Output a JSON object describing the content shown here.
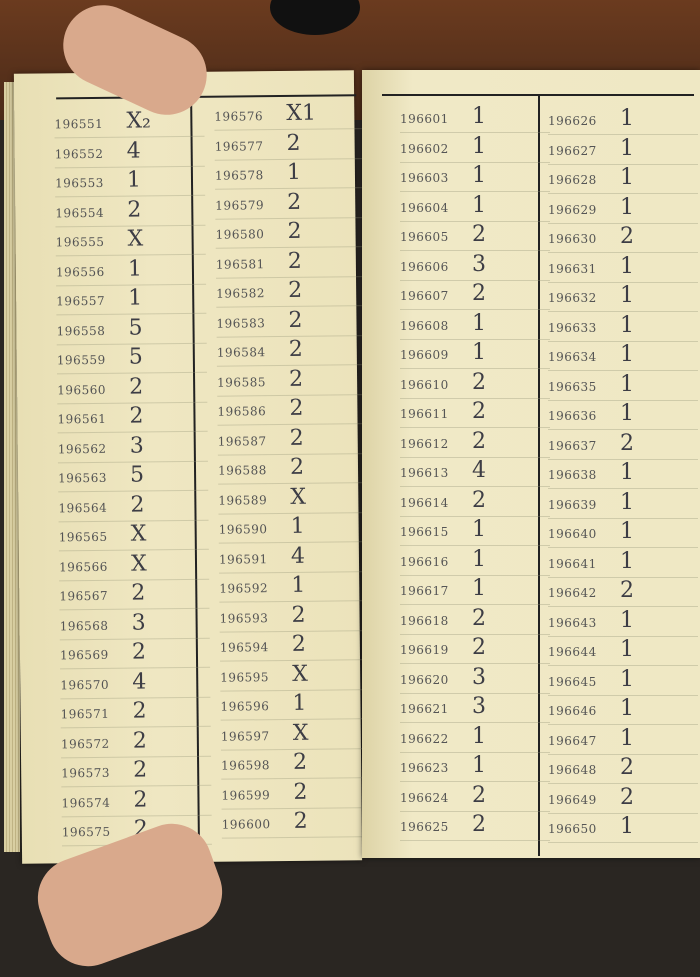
{
  "ledger": {
    "left_page": {
      "columns": [
        {
          "rows": [
            {
              "number": "196551",
              "value": "X₂"
            },
            {
              "number": "196552",
              "value": "4"
            },
            {
              "number": "196553",
              "value": "1"
            },
            {
              "number": "196554",
              "value": "2"
            },
            {
              "number": "196555",
              "value": "X"
            },
            {
              "number": "196556",
              "value": "1"
            },
            {
              "number": "196557",
              "value": "1"
            },
            {
              "number": "196558",
              "value": "5"
            },
            {
              "number": "196559",
              "value": "5"
            },
            {
              "number": "196560",
              "value": "2"
            },
            {
              "number": "196561",
              "value": "2"
            },
            {
              "number": "196562",
              "value": "3"
            },
            {
              "number": "196563",
              "value": "5"
            },
            {
              "number": "196564",
              "value": "2"
            },
            {
              "number": "196565",
              "value": "X"
            },
            {
              "number": "196566",
              "value": "X"
            },
            {
              "number": "196567",
              "value": "2"
            },
            {
              "number": "196568",
              "value": "3"
            },
            {
              "number": "196569",
              "value": "2"
            },
            {
              "number": "196570",
              "value": "4"
            },
            {
              "number": "196571",
              "value": "2"
            },
            {
              "number": "196572",
              "value": "2"
            },
            {
              "number": "196573",
              "value": "2"
            },
            {
              "number": "196574",
              "value": "2"
            },
            {
              "number": "196575",
              "value": "2"
            }
          ]
        },
        {
          "rows": [
            {
              "number": "196576",
              "value": "X1"
            },
            {
              "number": "196577",
              "value": "2"
            },
            {
              "number": "196578",
              "value": "1"
            },
            {
              "number": "196579",
              "value": "2"
            },
            {
              "number": "196580",
              "value": "2"
            },
            {
              "number": "196581",
              "value": "2"
            },
            {
              "number": "196582",
              "value": "2"
            },
            {
              "number": "196583",
              "value": "2"
            },
            {
              "number": "196584",
              "value": "2"
            },
            {
              "number": "196585",
              "value": "2"
            },
            {
              "number": "196586",
              "value": "2"
            },
            {
              "number": "196587",
              "value": "2"
            },
            {
              "number": "196588",
              "value": "2"
            },
            {
              "number": "196589",
              "value": "X"
            },
            {
              "number": "196590",
              "value": "1"
            },
            {
              "number": "196591",
              "value": "4"
            },
            {
              "number": "196592",
              "value": "1"
            },
            {
              "number": "196593",
              "value": "2"
            },
            {
              "number": "196594",
              "value": "2"
            },
            {
              "number": "196595",
              "value": "X"
            },
            {
              "number": "196596",
              "value": "1"
            },
            {
              "number": "196597",
              "value": "X"
            },
            {
              "number": "196598",
              "value": "2"
            },
            {
              "number": "196599",
              "value": "2"
            },
            {
              "number": "196600",
              "value": "2"
            }
          ]
        }
      ]
    },
    "right_page": {
      "columns": [
        {
          "rows": [
            {
              "number": "196601",
              "value": "1"
            },
            {
              "number": "196602",
              "value": "1"
            },
            {
              "number": "196603",
              "value": "1"
            },
            {
              "number": "196604",
              "value": "1"
            },
            {
              "number": "196605",
              "value": "2"
            },
            {
              "number": "196606",
              "value": "3"
            },
            {
              "number": "196607",
              "value": "2"
            },
            {
              "number": "196608",
              "value": "1"
            },
            {
              "number": "196609",
              "value": "1"
            },
            {
              "number": "196610",
              "value": "2"
            },
            {
              "number": "196611",
              "value": "2"
            },
            {
              "number": "196612",
              "value": "2"
            },
            {
              "number": "196613",
              "value": "4"
            },
            {
              "number": "196614",
              "value": "2"
            },
            {
              "number": "196615",
              "value": "1"
            },
            {
              "number": "196616",
              "value": "1"
            },
            {
              "number": "196617",
              "value": "1"
            },
            {
              "number": "196618",
              "value": "2"
            },
            {
              "number": "196619",
              "value": "2"
            },
            {
              "number": "196620",
              "value": "3"
            },
            {
              "number": "196621",
              "value": "3"
            },
            {
              "number": "196622",
              "value": "1"
            },
            {
              "number": "196623",
              "value": "1"
            },
            {
              "number": "196624",
              "value": "2"
            },
            {
              "number": "196625",
              "value": "2"
            }
          ]
        },
        {
          "rows": [
            {
              "number": "196626",
              "value": "1"
            },
            {
              "number": "196627",
              "value": "1"
            },
            {
              "number": "196628",
              "value": "1"
            },
            {
              "number": "196629",
              "value": "1"
            },
            {
              "number": "196630",
              "value": "2"
            },
            {
              "number": "196631",
              "value": "1"
            },
            {
              "number": "196632",
              "value": "1"
            },
            {
              "number": "196633",
              "value": "1"
            },
            {
              "number": "196634",
              "value": "1"
            },
            {
              "number": "196635",
              "value": "1"
            },
            {
              "number": "196636",
              "value": "1"
            },
            {
              "number": "196637",
              "value": "2"
            },
            {
              "number": "196638",
              "value": "1"
            },
            {
              "number": "196639",
              "value": "1"
            },
            {
              "number": "196640",
              "value": "1"
            },
            {
              "number": "196641",
              "value": "1"
            },
            {
              "number": "196642",
              "value": "2"
            },
            {
              "number": "196643",
              "value": "1"
            },
            {
              "number": "196644",
              "value": "1"
            },
            {
              "number": "196645",
              "value": "1"
            },
            {
              "number": "196646",
              "value": "1"
            },
            {
              "number": "196647",
              "value": "1"
            },
            {
              "number": "196648",
              "value": "2"
            },
            {
              "number": "196649",
              "value": "2"
            },
            {
              "number": "196650",
              "value": "1"
            }
          ]
        }
      ]
    }
  }
}
